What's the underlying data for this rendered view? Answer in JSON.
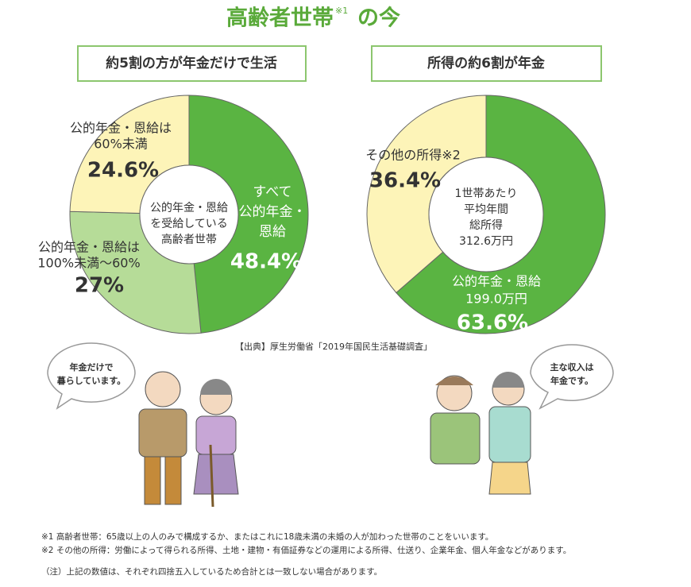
{
  "title": "高齢者世帯",
  "title_note": "※1",
  "title_tail": "の今",
  "chart_data": [
    {
      "type": "pie",
      "subtitle": "約5割の方が年金だけで生活",
      "center_label": [
        "公的年金・恩給",
        "を受給している",
        "高齢者世帯"
      ],
      "categories": [
        [
          "すべて",
          "公的年金・",
          "恩給"
        ],
        [
          "公的年金・恩給は",
          "100%未満～60%"
        ],
        [
          "公的年金・恩給は",
          "60%未満"
        ]
      ],
      "values": [
        48.4,
        27,
        24.6
      ],
      "value_labels": [
        "48.4%",
        "27%",
        "24.6%"
      ],
      "colors": [
        "#5ab442",
        "#b6dc98",
        "#fdf4b8"
      ]
    },
    {
      "type": "pie",
      "subtitle": "所得の約6割が年金",
      "center_label": [
        "1世帯あたり",
        "平均年間",
        "総所得",
        "312.6万円"
      ],
      "categories": [
        [
          "公的年金・恩給",
          "199.0万円"
        ],
        [
          "その他の所得※2"
        ]
      ],
      "values": [
        63.6,
        36.4
      ],
      "value_labels": [
        "63.6%",
        "36.4%"
      ],
      "colors": [
        "#5ab442",
        "#fdf4b8"
      ]
    }
  ],
  "source": "【出典】厚生労働省「2019年国民生活基礎調査」",
  "bubbles": [
    [
      "年金だけで",
      "暮らしています。"
    ],
    [
      "主な収入は",
      "年金です。"
    ]
  ],
  "footnotes": [
    "※1 高齢者世帯：65歳以上の人のみで構成するか、またはこれに18歳未満の未婚の人が加わった世帯のことをいいます。",
    "※2 その他の所得：労働によって得られる所得、土地・建物・有価証券などの運用による所得、仕送り、企業年金、個人年金などがあります。",
    "（注）上記の数値は、それぞれ四捨五入しているため合計とは一致しない場合があります。"
  ]
}
